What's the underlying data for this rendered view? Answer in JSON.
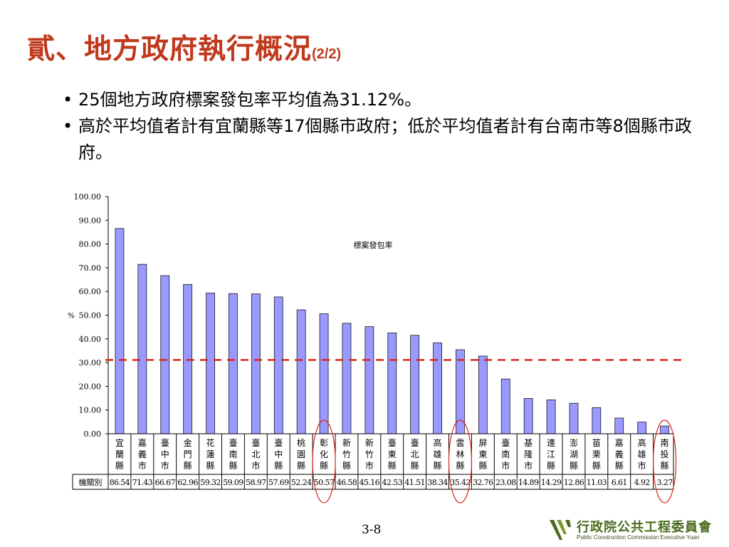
{
  "slide": {
    "title": "貳、地方政府執行概況",
    "title_sub": "(2/2)",
    "bullets": [
      "25個地方政府標案發包率平均值為31.12%。",
      "高於平均值者計有宜蘭縣等17個縣市政府；低於平均值者計有台南市等8個縣市政府。"
    ],
    "page_number": "3-8"
  },
  "logo": {
    "name_cn": "行政院公共工程委員會",
    "name_en": "Public Construction Commission Executive Yuan"
  },
  "colors": {
    "title": "#c0391e",
    "bar_fill": "#9999ff",
    "bar_stroke": "#1a1a1a",
    "average_line": "#d9261c",
    "highlight_circle": "#d9261c"
  },
  "chart_data": {
    "type": "bar",
    "title": "標案發包率",
    "ylabel": "%",
    "ylim": [
      0,
      100
    ],
    "yticks": [
      "0.00",
      "10.00",
      "20.00",
      "30.00",
      "40.00",
      "50.00",
      "60.00",
      "70.00",
      "80.00",
      "90.00",
      "100.00"
    ],
    "row_label": "機關別",
    "categories": [
      "宜蘭縣",
      "嘉義市",
      "臺中市",
      "金門縣",
      "花蓮縣",
      "臺南縣",
      "臺北市",
      "臺中縣",
      "桃園縣",
      "彰化縣",
      "新竹縣",
      "新竹市",
      "臺東縣",
      "臺北縣",
      "高雄縣",
      "雲林縣",
      "屏東縣",
      "臺南市",
      "基隆市",
      "連江縣",
      "澎湖縣",
      "苗栗縣",
      "嘉義縣",
      "高雄市",
      "南投縣"
    ],
    "values": [
      86.54,
      71.43,
      66.67,
      62.96,
      59.32,
      59.09,
      58.97,
      57.69,
      52.24,
      50.57,
      46.58,
      45.16,
      42.53,
      41.51,
      38.34,
      35.42,
      32.76,
      23.08,
      14.89,
      14.29,
      12.86,
      11.03,
      6.61,
      4.92,
      3.27
    ],
    "value_labels": [
      "86.54",
      "71.43",
      "66.67",
      "62.96",
      "59.32",
      "59.09",
      "58.97",
      "57.69",
      "52.24",
      "50.57",
      "46.58",
      "45.16",
      "42.53",
      "41.51",
      "38.34",
      "35.42",
      "32.76",
      "23.08",
      "14.89",
      "14.29",
      "12.86",
      "11.03",
      "6.61",
      "4.92",
      "3.27"
    ],
    "average": 31.12,
    "highlighted": [
      "彰化縣",
      "雲林縣",
      "南投縣"
    ],
    "legend": "none",
    "grid": false
  }
}
